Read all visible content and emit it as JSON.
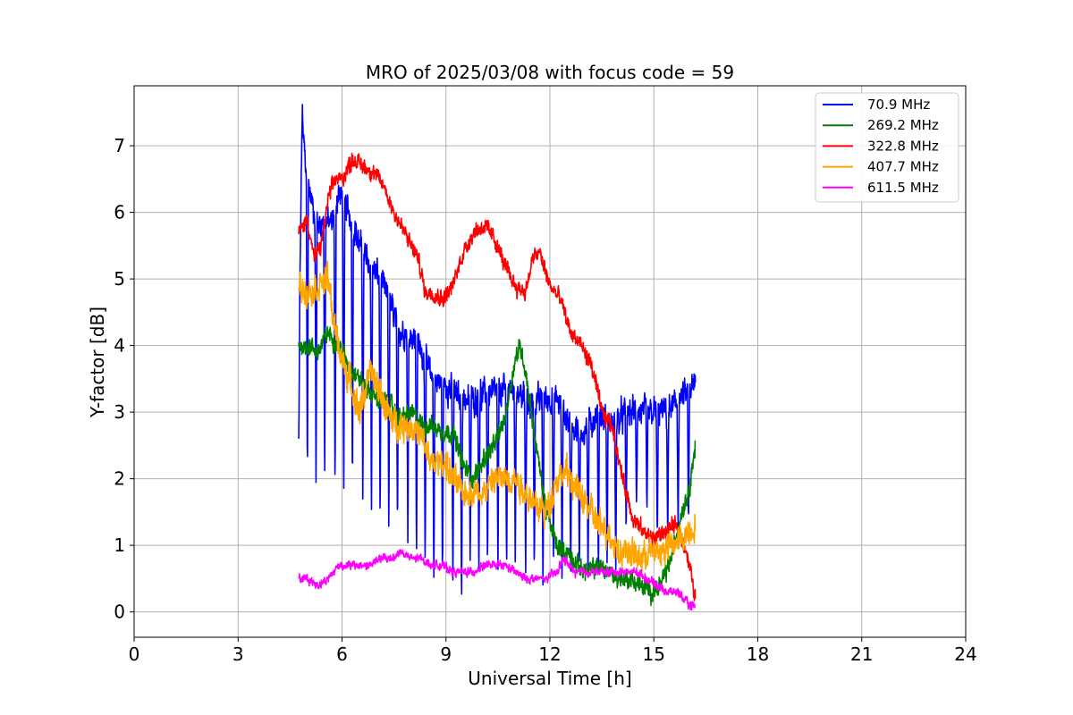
{
  "chart_data": {
    "type": "line",
    "title": "MRO of 2025/03/08 with focus code = 59",
    "xlabel": "Universal Time [h]",
    "ylabel": "Y-factor [dB]",
    "xlim": [
      0,
      24
    ],
    "ylim": [
      -0.38,
      7.9
    ],
    "xticks": [
      0,
      3,
      6,
      9,
      12,
      15,
      18,
      21,
      24
    ],
    "yticks": [
      0,
      1,
      2,
      3,
      4,
      5,
      6,
      7
    ],
    "grid": true,
    "legend_position": "top-right",
    "series": [
      {
        "name": " 70.9 MHz",
        "color": "#0000ff",
        "x": [
          4.75,
          4.85,
          4.95,
          5.1,
          5.3,
          5.5,
          5.7,
          5.9,
          6.1,
          6.3,
          6.5,
          6.8,
          7.1,
          7.4,
          7.7,
          8.0,
          8.3,
          8.6,
          9.0,
          9.4,
          9.8,
          10.2,
          10.6,
          11.0,
          11.4,
          11.8,
          12.2,
          12.6,
          13.0,
          13.4,
          13.8,
          14.2,
          14.6,
          15.0,
          15.4,
          15.8,
          16.2
        ],
        "y": [
          3.5,
          7.5,
          6.6,
          6.2,
          5.8,
          5.9,
          5.8,
          6.3,
          6.1,
          5.9,
          5.5,
          5.2,
          5.0,
          4.6,
          4.2,
          4.2,
          3.9,
          3.5,
          3.4,
          3.2,
          3.2,
          3.3,
          3.3,
          3.4,
          3.1,
          3.2,
          3.2,
          2.8,
          2.7,
          3.0,
          2.8,
          3.0,
          3.0,
          3.0,
          3.0,
          3.2,
          3.4
        ],
        "dips": [
          [
            4.75,
            2.6
          ],
          [
            5.0,
            1.8
          ],
          [
            5.25,
            1.8
          ],
          [
            5.5,
            1.8
          ],
          [
            5.8,
            1.6
          ],
          [
            6.05,
            1.8
          ],
          [
            6.3,
            1.7
          ],
          [
            6.6,
            1.5
          ],
          [
            6.85,
            1.3
          ],
          [
            7.1,
            1.2
          ],
          [
            7.35,
            1.2
          ],
          [
            7.6,
            1.1
          ],
          [
            7.9,
            0.9
          ],
          [
            8.15,
            0.7
          ],
          [
            8.4,
            0.6
          ],
          [
            8.65,
            0.4
          ],
          [
            8.9,
            0.4
          ],
          [
            9.2,
            0.4
          ],
          [
            9.45,
            0.0
          ],
          [
            9.7,
            0.6
          ],
          [
            9.95,
            0.5
          ],
          [
            10.2,
            0.6
          ],
          [
            10.5,
            0.6
          ],
          [
            10.75,
            0.5
          ],
          [
            11.0,
            0.6
          ],
          [
            11.3,
            0.5
          ],
          [
            11.55,
            0.5
          ],
          [
            11.8,
            0.4
          ],
          [
            12.1,
            0.6
          ],
          [
            12.35,
            0.3
          ],
          [
            12.6,
            0.5
          ],
          [
            12.85,
            0.5
          ],
          [
            13.1,
            0.5
          ],
          [
            13.4,
            0.5
          ],
          [
            13.65,
            0.6
          ],
          [
            13.9,
            0.5
          ],
          [
            14.2,
            1.1
          ],
          [
            14.5,
            1.6
          ],
          [
            14.8,
            1.5
          ],
          [
            15.1,
            1.0
          ],
          [
            15.4,
            1.0
          ],
          [
            15.7,
            1.2
          ],
          [
            16.0,
            1.2
          ]
        ]
      },
      {
        "name": "269.2 MHz",
        "color": "#008000",
        "x": [
          4.75,
          5.0,
          5.3,
          5.6,
          5.9,
          6.2,
          6.5,
          6.8,
          7.1,
          7.4,
          7.7,
          8.0,
          8.3,
          8.6,
          8.9,
          9.2,
          9.5,
          9.8,
          10.1,
          10.4,
          10.7,
          11.0,
          11.15,
          11.3,
          11.6,
          11.9,
          12.2,
          12.5,
          12.8,
          13.1,
          13.4,
          13.7,
          14.0,
          14.3,
          14.6,
          14.9,
          15.2,
          15.5,
          15.8,
          16.0,
          16.2
        ],
        "y": [
          4.0,
          4.0,
          3.9,
          4.2,
          4.0,
          3.7,
          3.5,
          3.3,
          3.2,
          3.1,
          2.9,
          3.0,
          2.8,
          2.8,
          2.7,
          2.7,
          2.2,
          2.0,
          2.3,
          2.5,
          2.9,
          3.8,
          4.0,
          3.6,
          2.5,
          1.5,
          1.0,
          0.9,
          0.7,
          0.6,
          0.7,
          0.6,
          0.5,
          0.5,
          0.4,
          0.3,
          0.4,
          0.8,
          1.5,
          1.8,
          2.5
        ]
      },
      {
        "name": "322.8 MHz",
        "color": "#ff0000",
        "x": [
          4.75,
          5.0,
          5.2,
          5.4,
          5.6,
          5.8,
          6.0,
          6.3,
          6.6,
          6.9,
          7.2,
          7.5,
          7.8,
          8.0,
          8.2,
          8.4,
          8.6,
          8.9,
          9.2,
          9.5,
          9.8,
          10.1,
          10.4,
          10.7,
          11.0,
          11.3,
          11.5,
          11.7,
          12.0,
          12.3,
          12.6,
          12.9,
          13.2,
          13.5,
          13.8,
          14.1,
          14.4,
          14.7,
          15.0,
          15.3,
          15.6,
          15.9,
          16.1,
          16.2
        ],
        "y": [
          5.7,
          5.9,
          5.3,
          5.5,
          6.2,
          6.5,
          6.5,
          6.8,
          6.7,
          6.6,
          6.4,
          6.0,
          5.7,
          5.5,
          5.3,
          4.8,
          4.8,
          4.7,
          4.9,
          5.4,
          5.7,
          5.8,
          5.6,
          5.2,
          4.9,
          4.8,
          5.3,
          5.4,
          4.9,
          4.7,
          4.2,
          4.0,
          3.7,
          3.0,
          2.8,
          2.0,
          1.4,
          1.2,
          1.1,
          1.2,
          1.3,
          1.0,
          0.5,
          0.2
        ]
      },
      {
        "name": "407.7 MHz",
        "color": "#ffa500",
        "x": [
          4.75,
          5.0,
          5.3,
          5.6,
          5.8,
          6.0,
          6.2,
          6.5,
          6.8,
          7.1,
          7.4,
          7.7,
          8.0,
          8.3,
          8.6,
          8.9,
          9.2,
          9.5,
          9.8,
          10.1,
          10.4,
          10.7,
          11.0,
          11.3,
          11.6,
          11.9,
          12.2,
          12.5,
          12.8,
          13.1,
          13.4,
          13.7,
          14.0,
          14.3,
          14.6,
          14.9,
          15.2,
          15.5,
          15.8,
          16.0,
          16.2
        ],
        "y": [
          4.9,
          4.8,
          4.9,
          5.0,
          4.2,
          3.8,
          3.5,
          3.0,
          3.6,
          3.3,
          2.9,
          2.8,
          2.8,
          2.6,
          2.2,
          2.3,
          2.0,
          1.8,
          1.8,
          1.8,
          2.0,
          2.0,
          2.0,
          1.8,
          1.6,
          1.5,
          2.0,
          2.1,
          1.8,
          1.6,
          1.3,
          1.2,
          0.9,
          0.9,
          0.8,
          0.9,
          0.9,
          1.0,
          1.1,
          1.2,
          1.3
        ]
      },
      {
        "name": "611.5 MHz",
        "color": "#ff00ff",
        "x": [
          4.75,
          5.0,
          5.3,
          5.6,
          5.9,
          6.2,
          6.5,
          6.8,
          7.1,
          7.4,
          7.7,
          8.0,
          8.3,
          8.6,
          8.9,
          9.2,
          9.5,
          9.8,
          10.1,
          10.4,
          10.7,
          11.0,
          11.3,
          11.6,
          11.9,
          12.2,
          12.4,
          12.7,
          13.0,
          13.3,
          13.6,
          13.9,
          14.2,
          14.5,
          14.8,
          15.1,
          15.4,
          15.7,
          16.0,
          16.2
        ],
        "y": [
          0.5,
          0.5,
          0.4,
          0.5,
          0.7,
          0.7,
          0.7,
          0.7,
          0.8,
          0.8,
          0.9,
          0.8,
          0.8,
          0.7,
          0.7,
          0.6,
          0.6,
          0.6,
          0.7,
          0.7,
          0.7,
          0.6,
          0.5,
          0.5,
          0.5,
          0.6,
          0.8,
          0.6,
          0.6,
          0.6,
          0.6,
          0.6,
          0.6,
          0.6,
          0.5,
          0.4,
          0.3,
          0.3,
          0.1,
          0.1
        ]
      }
    ]
  }
}
